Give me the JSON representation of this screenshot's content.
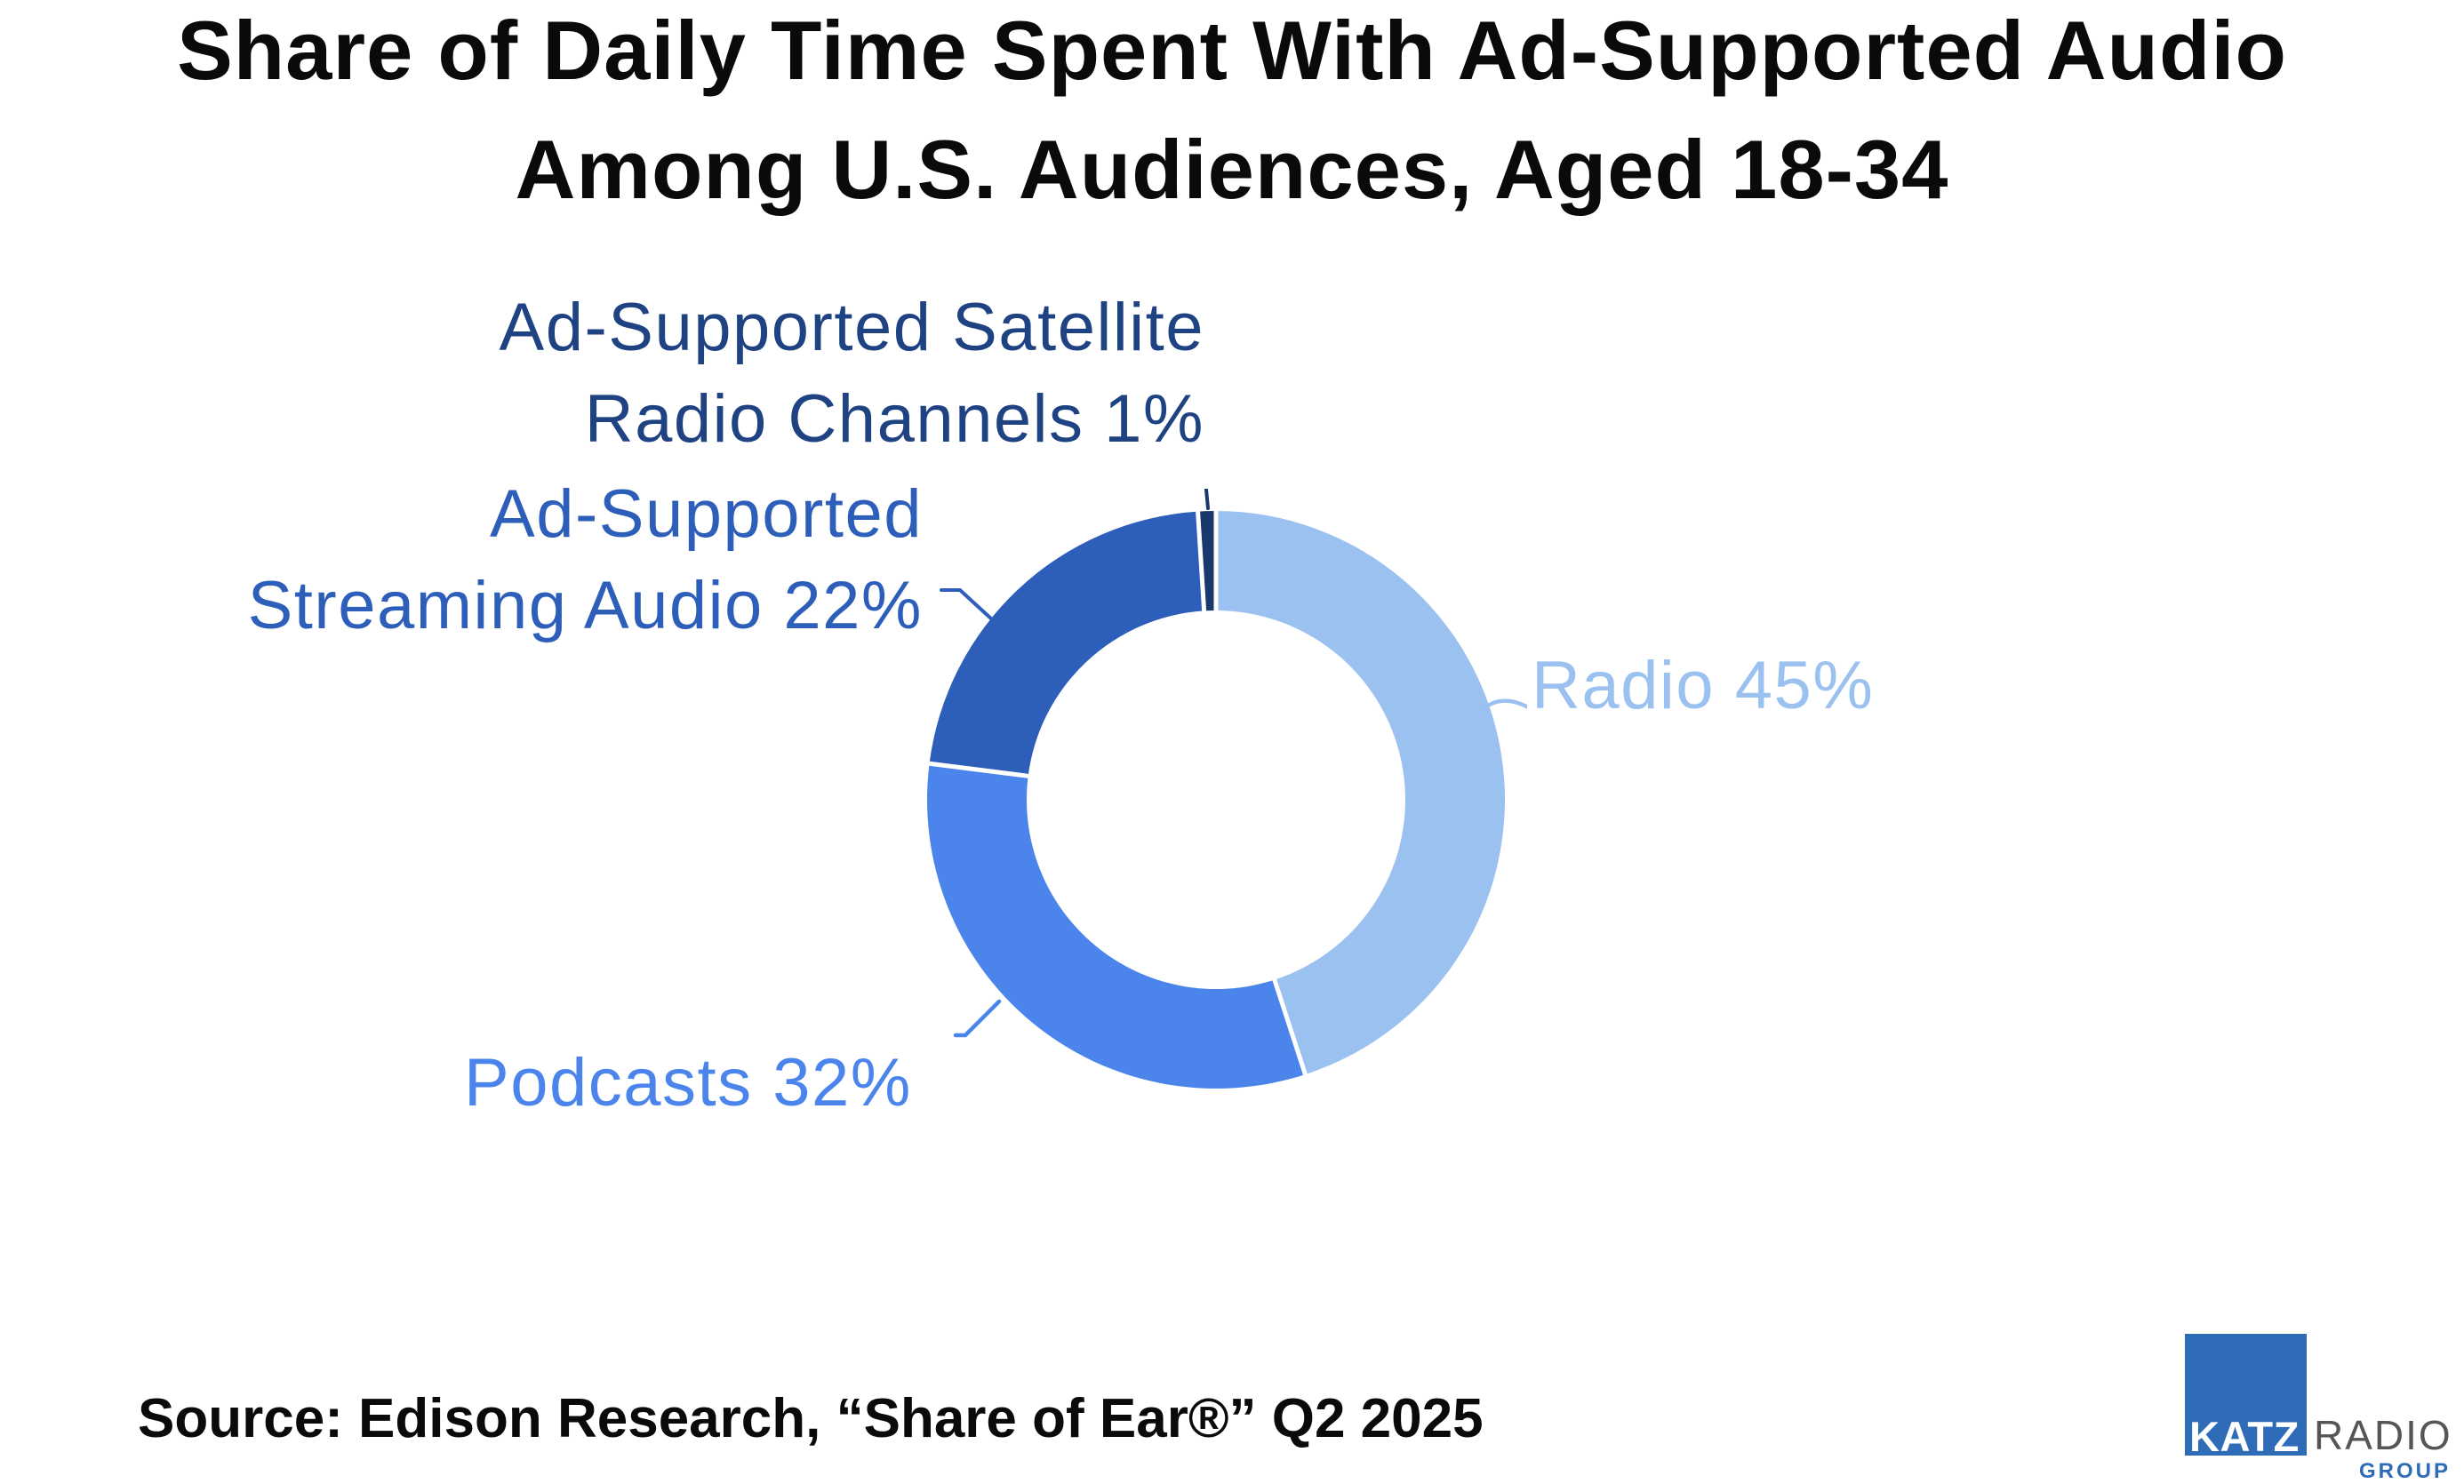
{
  "title": {
    "line1": "Share of Daily Time Spent With Ad-Supported Audio",
    "line2": "Among U.S. Audiences, Aged 18-34"
  },
  "chart_data": {
    "type": "pie",
    "variant": "donut",
    "title": "Share of Daily Time Spent With Ad-Supported Audio Among U.S. Audiences, Aged 18-34",
    "unit": "percent",
    "start_angle_deg": 0,
    "direction": "clockwise",
    "inner_radius_ratio": 0.655,
    "gap_color": "#ffffff",
    "segments": [
      {
        "id": "radio",
        "label": "Radio",
        "value": 45,
        "color": "#9BC1F0"
      },
      {
        "id": "podcasts",
        "label": "Podcasts",
        "value": 32,
        "color": "#4B85EC"
      },
      {
        "id": "streaming",
        "label": "Ad-Supported Streaming Audio",
        "value": 22,
        "color": "#2D5FBA"
      },
      {
        "id": "satellite",
        "label": "Ad-Supported Satellite Radio Channels",
        "value": 1,
        "color": "#19386B"
      }
    ]
  },
  "callouts": {
    "satellite": {
      "line1": "Ad-Supported Satellite",
      "line2": "Radio Channels 1%",
      "color": "#1E4282"
    },
    "streaming": {
      "line1": "Ad-Supported",
      "line2": "Streaming Audio 22%",
      "color": "#2D5FBA"
    },
    "radio": {
      "text": "Radio 45%",
      "color": "#9BC1F0"
    },
    "podcasts": {
      "text": "Podcasts 32%",
      "color": "#4B85EC"
    }
  },
  "source": {
    "text": "Source: Edison Research, “Share of Ear®” Q2 2025"
  },
  "logo": {
    "katz": "KATZ",
    "radio": "RADIO",
    "group": "GROUP",
    "blue": "#2E6CB7",
    "gray": "#55565A"
  }
}
